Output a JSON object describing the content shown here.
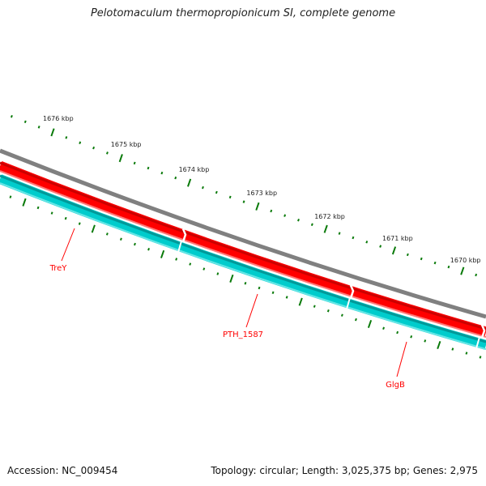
{
  "title": "Pelotomaculum thermopropionicum SI, complete genome",
  "ticks": {
    "labels": [
      "1676 kbp",
      "1675 kbp",
      "1674 kbp",
      "1673 kbp",
      "1672 kbp",
      "1671 kbp",
      "1670 kbp"
    ],
    "color": "#0a7a0a"
  },
  "genes": [
    {
      "label": "TreY"
    },
    {
      "label": "PTH_1587"
    },
    {
      "label": "GlgB"
    }
  ],
  "colors": {
    "backbone": "#808080",
    "forward": "#ff0000",
    "reverse": "#00cccc",
    "gene_label": "#ff0000"
  },
  "footer": {
    "accession": "Accession: NC_009454",
    "topology": "Topology: circular; Length: 3,025,375 bp; Genes: 2,975"
  }
}
